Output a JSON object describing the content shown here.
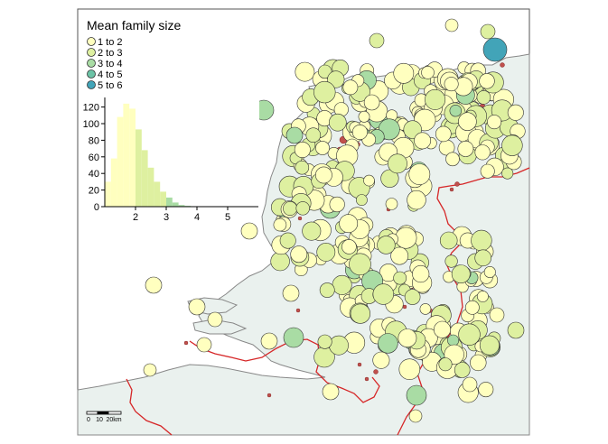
{
  "legend": {
    "title": "Mean family size",
    "classes": [
      {
        "label": "1 to 2",
        "color": "#FFFFBF"
      },
      {
        "label": "2 to 3",
        "color": "#DEF0A0"
      },
      {
        "label": "3 to 4",
        "color": "#A9DCA4"
      },
      {
        "label": "4 to 5",
        "color": "#6CC3A6"
      },
      {
        "label": "5 to 6",
        "color": "#42A4B8"
      }
    ]
  },
  "histogram": {
    "y_ticks": [
      "0",
      "20",
      "40",
      "60",
      "80",
      "100",
      "120"
    ],
    "x_ticks": [
      "2",
      "3",
      "4",
      "5"
    ]
  },
  "scale_bar": {
    "labels": [
      "0",
      "10",
      "20km"
    ]
  },
  "colors": {
    "sea": "#FFFFFF",
    "land": "#EAF1EE",
    "border": "#D62728",
    "urban": "#C0504D",
    "frame": "#555555"
  },
  "chart_data": {
    "type": "bar",
    "title": "",
    "xlabel": "",
    "ylabel": "",
    "bin_width": 0.2,
    "bin_starts": [
      1.0,
      1.2,
      1.4,
      1.6,
      1.8,
      2.0,
      2.2,
      2.4,
      2.6,
      2.8,
      3.0,
      3.2,
      3.4,
      3.6
    ],
    "values": [
      30,
      58,
      108,
      124,
      118,
      93,
      68,
      47,
      30,
      18,
      11,
      5,
      2,
      1
    ],
    "bar_colors": [
      "#FFFFBF",
      "#FFFFBF",
      "#FFFFBF",
      "#FFFFBF",
      "#FFFFBF",
      "#DEF0A0",
      "#DEF0A0",
      "#DEF0A0",
      "#DEF0A0",
      "#DEF0A0",
      "#A9DCA4",
      "#A9DCA4",
      "#A9DCA4",
      "#A9DCA4"
    ],
    "xlim": [
      1.0,
      6.0
    ],
    "ylim": [
      0,
      130
    ]
  }
}
